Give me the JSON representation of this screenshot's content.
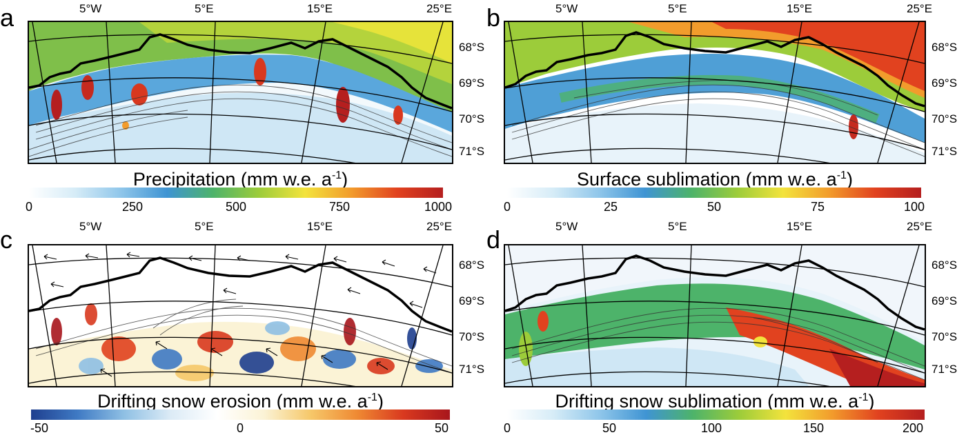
{
  "panels": [
    {
      "id": "a",
      "label": "a",
      "title": "Precipitation (mm w.e. a",
      "title_sup": "-1",
      "title_end": ")",
      "colorbar_ticks": [
        "0",
        "250",
        "500",
        "750",
        "1000"
      ],
      "colorbar_colors": [
        "#ffffff",
        "#d6ecf7",
        "#8fc6ea",
        "#3f94d3",
        "#4db36a",
        "#9ccc3a",
        "#f3e33c",
        "#f29c2c",
        "#e1421f",
        "#b51f1f"
      ]
    },
    {
      "id": "b",
      "label": "b",
      "title": "Surface sublimation (mm w.e. a",
      "title_sup": "-1",
      "title_end": ")",
      "colorbar_ticks": [
        "0",
        "25",
        "50",
        "75",
        "100"
      ],
      "colorbar_colors": [
        "#ffffff",
        "#d6ecf7",
        "#8fc6ea",
        "#3f94d3",
        "#4db36a",
        "#9ccc3a",
        "#f3e33c",
        "#f29c2c",
        "#e1421f",
        "#b51f1f"
      ]
    },
    {
      "id": "c",
      "label": "c",
      "title": "Drifting snow erosion (mm w.e. a",
      "title_sup": "-1",
      "title_end": ")",
      "colorbar_ticks": [
        "-50",
        "0",
        "50"
      ],
      "colorbar_colors": [
        "#1f3f8f",
        "#3f7ac4",
        "#8fc0e4",
        "#dcebf6",
        "#ffffff",
        "#fbf3d6",
        "#f6c86a",
        "#ef8a33",
        "#d9391f",
        "#a8161c"
      ]
    },
    {
      "id": "d",
      "label": "d",
      "title": "Drifting snow sublimation (mm w.e. a",
      "title_sup": "-1",
      "title_end": ")",
      "colorbar_ticks": [
        "0",
        "50",
        "100",
        "150",
        "200"
      ],
      "colorbar_colors": [
        "#ffffff",
        "#d6ecf7",
        "#8fc6ea",
        "#3f94d3",
        "#4db36a",
        "#9ccc3a",
        "#f3e33c",
        "#f29c2c",
        "#e1421f",
        "#b51f1f"
      ]
    }
  ],
  "longitude_labels": [
    "5°W",
    "5°E",
    "15°E",
    "25°E"
  ],
  "latitude_labels": [
    "68°S",
    "69°S",
    "70°S",
    "71°S"
  ]
}
